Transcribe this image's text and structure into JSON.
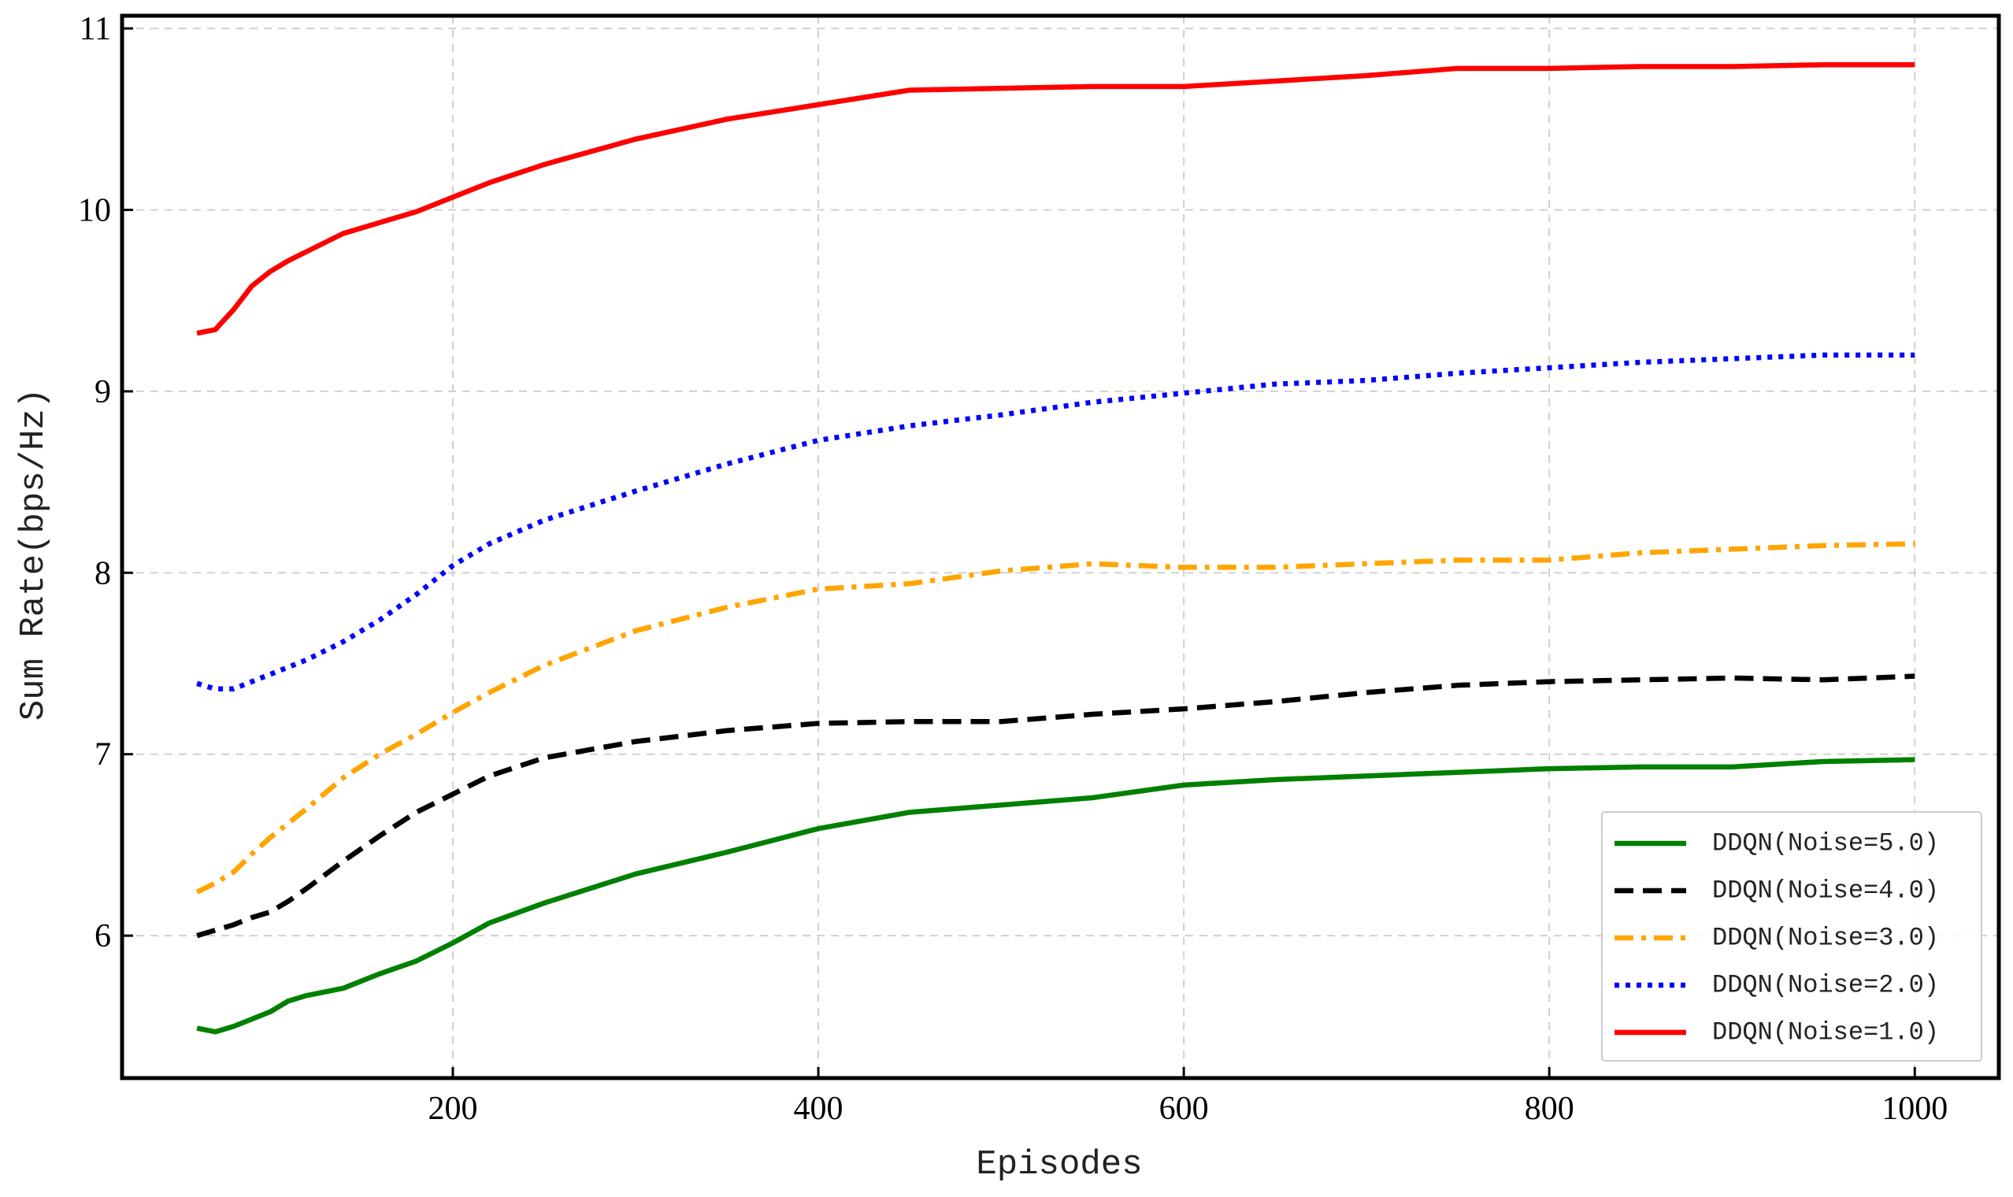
{
  "chart_data": {
    "type": "line",
    "xlabel": "Episodes",
    "ylabel": "Sum Rate(bps/Hz)",
    "x": [
      60,
      70,
      80,
      90,
      100,
      110,
      120,
      140,
      160,
      180,
      200,
      220,
      250,
      300,
      350,
      400,
      450,
      500,
      550,
      600,
      650,
      700,
      750,
      800,
      850,
      900,
      950,
      1000
    ],
    "series": [
      {
        "name": "DDQN(Noise=5.0)",
        "color": "#008000",
        "linestyle": "solid",
        "values": [
          5.49,
          5.47,
          5.5,
          5.54,
          5.58,
          5.64,
          5.67,
          5.71,
          5.79,
          5.86,
          5.96,
          6.07,
          6.18,
          6.34,
          6.46,
          6.59,
          6.68,
          6.72,
          6.76,
          6.83,
          6.86,
          6.88,
          6.9,
          6.92,
          6.93,
          6.93,
          6.96,
          6.97
        ]
      },
      {
        "name": "DDQN(Noise=4.0)",
        "color": "#000000",
        "linestyle": "dashed",
        "values": [
          6.0,
          6.03,
          6.06,
          6.1,
          6.13,
          6.19,
          6.26,
          6.41,
          6.55,
          6.68,
          6.78,
          6.88,
          6.98,
          7.07,
          7.13,
          7.17,
          7.18,
          7.18,
          7.22,
          7.25,
          7.29,
          7.34,
          7.38,
          7.4,
          7.41,
          7.42,
          7.41,
          7.43
        ]
      },
      {
        "name": "DDQN(Noise=3.0)",
        "color": "#ffa500",
        "linestyle": "dashdot",
        "values": [
          6.24,
          6.29,
          6.35,
          6.45,
          6.54,
          6.62,
          6.7,
          6.87,
          7.0,
          7.11,
          7.23,
          7.34,
          7.49,
          7.68,
          7.81,
          7.91,
          7.94,
          8.01,
          8.05,
          8.03,
          8.03,
          8.05,
          8.07,
          8.07,
          8.11,
          8.13,
          8.15,
          8.16
        ]
      },
      {
        "name": "DDQN(Noise=2.0)",
        "color": "#0000ff",
        "linestyle": "dotted",
        "values": [
          7.39,
          7.36,
          7.36,
          7.4,
          7.44,
          7.48,
          7.52,
          7.62,
          7.74,
          7.88,
          8.04,
          8.16,
          8.29,
          8.45,
          8.6,
          8.73,
          8.81,
          8.87,
          8.94,
          8.99,
          9.04,
          9.06,
          9.1,
          9.13,
          9.16,
          9.18,
          9.2,
          9.2
        ]
      },
      {
        "name": "DDQN(Noise=1.0)",
        "color": "#ff0000",
        "linestyle": "solid",
        "values": [
          9.32,
          9.34,
          9.45,
          9.58,
          9.66,
          9.72,
          9.77,
          9.87,
          9.93,
          9.99,
          10.07,
          10.15,
          10.25,
          10.39,
          10.5,
          10.58,
          10.66,
          10.67,
          10.68,
          10.68,
          10.71,
          10.74,
          10.78,
          10.78,
          10.79,
          10.79,
          10.8,
          10.8
        ]
      }
    ],
    "xlim": [
      19,
      1046
    ],
    "ylim": [
      5.215,
      11.07
    ],
    "xticks": [
      200,
      400,
      600,
      800,
      1000
    ],
    "yticks": [
      6,
      7,
      8,
      9,
      10,
      11
    ],
    "grid": true,
    "legend": "lower right"
  }
}
